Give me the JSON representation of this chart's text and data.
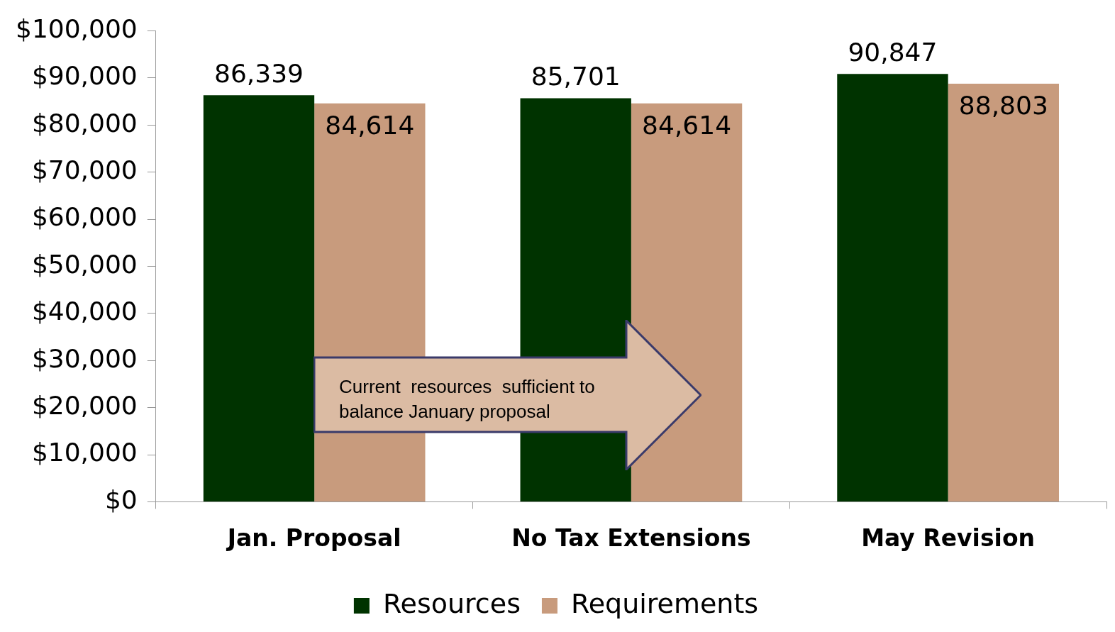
{
  "chart_data": {
    "type": "bar",
    "categories": [
      "Jan. Proposal",
      "No Tax Extensions",
      "May Revision"
    ],
    "series": [
      {
        "name": "Resources",
        "color": "#003300",
        "values": [
          86339,
          85701,
          90847
        ],
        "value_labels": [
          "86,339",
          "85,701",
          "90,847"
        ]
      },
      {
        "name": "Requirements",
        "color": "#c89b7d",
        "values": [
          84614,
          84614,
          88803
        ],
        "value_labels": [
          "84,614",
          "84,614",
          "88,803"
        ]
      }
    ],
    "ylim": [
      0,
      100000
    ],
    "yticks": [
      {
        "value": 0,
        "label": "$0"
      },
      {
        "value": 10000,
        "label": "$10,000"
      },
      {
        "value": 20000,
        "label": "$20,000"
      },
      {
        "value": 30000,
        "label": "$30,000"
      },
      {
        "value": 40000,
        "label": "$40,000"
      },
      {
        "value": 50000,
        "label": "$50,000"
      },
      {
        "value": 60000,
        "label": "$60,000"
      },
      {
        "value": 70000,
        "label": "$70,000"
      },
      {
        "value": 80000,
        "label": "$80,000"
      },
      {
        "value": 90000,
        "label": "$90,000"
      },
      {
        "value": 100000,
        "label": "$100,000"
      }
    ],
    "grid": false,
    "legend": "bottom",
    "annotations": [
      "Current  resources  sufficient to balance January proposal"
    ]
  }
}
